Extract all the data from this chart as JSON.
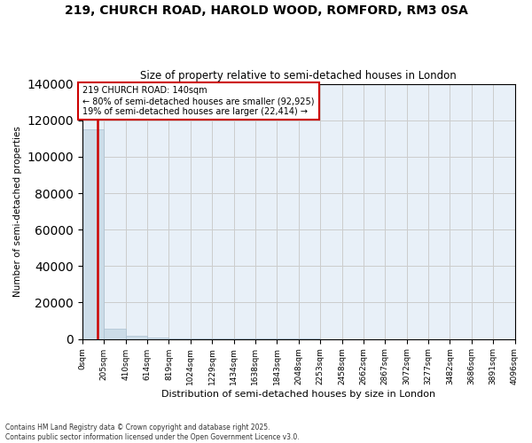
{
  "title": "219, CHURCH ROAD, HAROLD WOOD, ROMFORD, RM3 0SA",
  "subtitle": "Size of property relative to semi-detached houses in London",
  "xlabel": "Distribution of semi-detached houses by size in London",
  "ylabel": "Number of semi-detached properties",
  "property_size": 140,
  "property_label": "219 CHURCH ROAD: 140sqm",
  "pct_smaller": 80,
  "pct_larger": 19,
  "n_smaller": 92925,
  "n_larger": 22414,
  "annotation_line1": "← 80% of semi-detached houses are smaller (92,925)",
  "annotation_line2": "19% of semi-detached houses are larger (22,414) →",
  "ylim": [
    0,
    140000
  ],
  "yticks": [
    0,
    20000,
    40000,
    60000,
    80000,
    100000,
    120000,
    140000
  ],
  "bar_color": "#ccdce8",
  "bar_edge_color": "#aac0d0",
  "vline_color": "#cc0000",
  "grid_color": "#cccccc",
  "background_color": "#e8f0f8",
  "footer": "Contains HM Land Registry data © Crown copyright and database right 2025.\nContains public sector information licensed under the Open Government Licence v3.0.",
  "bin_edges": [
    0,
    205,
    410,
    614,
    819,
    1024,
    1229,
    1434,
    1638,
    1843,
    2048,
    2253,
    2458,
    2662,
    2867,
    3072,
    3277,
    3482,
    3686,
    3891,
    4096
  ],
  "bin_counts": [
    115000,
    5500,
    1800,
    700,
    350,
    200,
    130,
    100,
    80,
    65,
    55,
    45,
    38,
    32,
    28,
    24,
    20,
    17,
    15,
    12
  ]
}
